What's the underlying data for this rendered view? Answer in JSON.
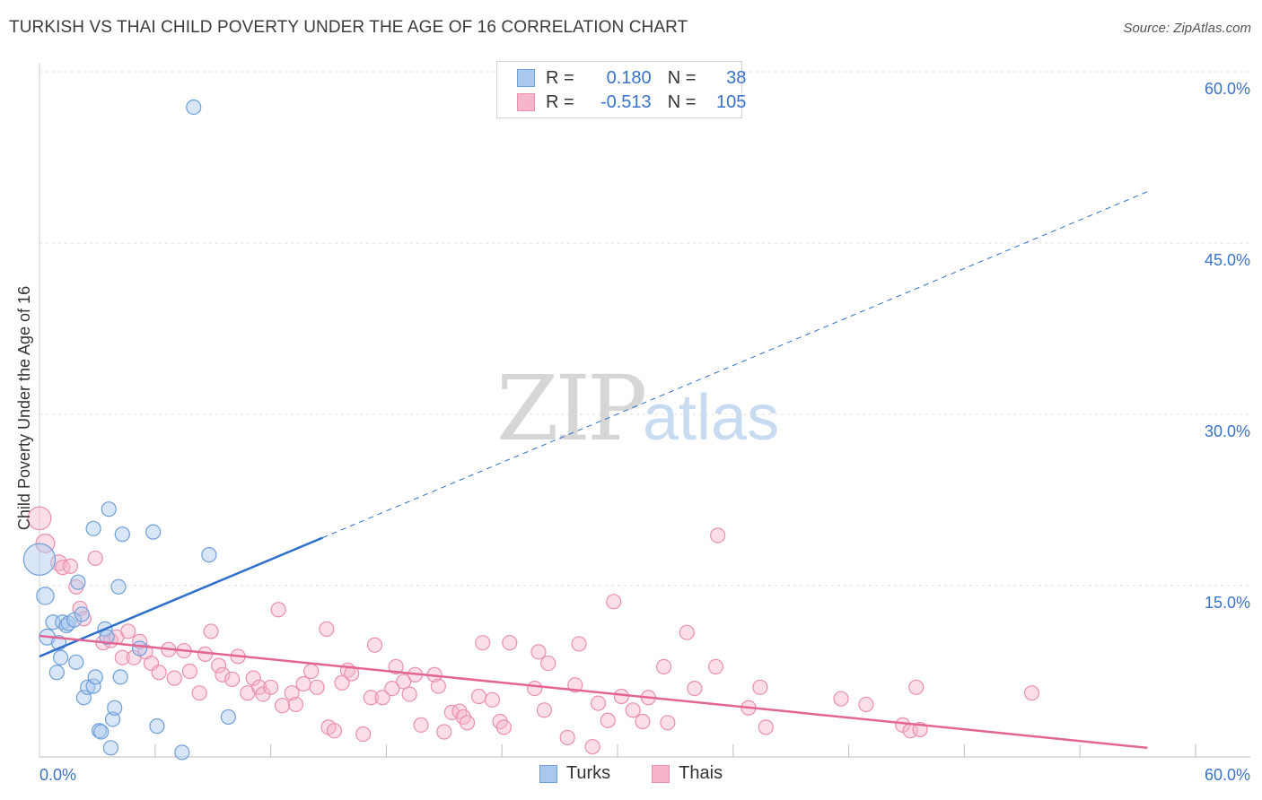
{
  "title": "TURKISH VS THAI CHILD POVERTY UNDER THE AGE OF 16 CORRELATION CHART",
  "source": "Source: ZipAtlas.com",
  "watermark": {
    "zip": "ZIP",
    "atlas": "atlas"
  },
  "legend": {
    "turks": {
      "r_label": "R =",
      "r_value": "0.180",
      "n_label": "N =",
      "n_value": "38"
    },
    "thais": {
      "r_label": "R =",
      "r_value": "-0.513",
      "n_label": "N =",
      "n_value": "105"
    }
  },
  "bottom_legend": {
    "turks": "Turks",
    "thais": "Thais"
  },
  "colors": {
    "turks_fill": "#a9c8ee",
    "turks_stroke": "#6f9fd8",
    "turks_line": "#2f6fcc",
    "thais_fill": "#f6b5cb",
    "thais_stroke": "#ea8fae",
    "thais_line": "#e26595",
    "axis_text": "#3a73c8"
  },
  "chart_data": {
    "type": "scatter",
    "title": "TURKISH VS THAI CHILD POVERTY UNDER THE AGE OF 16 CORRELATION CHART",
    "xlabel": "",
    "ylabel": "Child Poverty Under the Age of 16",
    "xlim": [
      0,
      60
    ],
    "ylim": [
      0,
      60
    ],
    "x_tick_labels": [
      "0.0%",
      "60.0%"
    ],
    "y_ticks": [
      15,
      30,
      45,
      60
    ],
    "y_tick_labels": [
      "15.0%",
      "30.0%",
      "45.0%",
      "60.0%"
    ],
    "series": [
      {
        "name": "Turks",
        "regression": {
          "x0": 0,
          "y0": 8.8,
          "x1": 14.7,
          "y1": 19.2,
          "dashed_to_x": 57.5,
          "dashed_to_y": 49.5
        },
        "points": [
          {
            "x": 0.0,
            "y": 17.3,
            "s": 2.2
          },
          {
            "x": 0.3,
            "y": 14.1,
            "s": 1.2
          },
          {
            "x": 0.4,
            "y": 10.5,
            "s": 1.1
          },
          {
            "x": 0.7,
            "y": 11.8,
            "s": 1
          },
          {
            "x": 0.9,
            "y": 7.4,
            "s": 1
          },
          {
            "x": 1.0,
            "y": 10.0,
            "s": 1
          },
          {
            "x": 1.1,
            "y": 8.7,
            "s": 1
          },
          {
            "x": 1.2,
            "y": 11.8,
            "s": 1
          },
          {
            "x": 1.4,
            "y": 11.5,
            "s": 1
          },
          {
            "x": 1.5,
            "y": 11.7,
            "s": 1
          },
          {
            "x": 1.8,
            "y": 12.0,
            "s": 1
          },
          {
            "x": 1.9,
            "y": 8.3,
            "s": 1
          },
          {
            "x": 2.0,
            "y": 15.3,
            "s": 1
          },
          {
            "x": 2.2,
            "y": 12.5,
            "s": 1
          },
          {
            "x": 2.3,
            "y": 5.2,
            "s": 1
          },
          {
            "x": 2.5,
            "y": 6.1,
            "s": 1
          },
          {
            "x": 2.8,
            "y": 6.2,
            "s": 1
          },
          {
            "x": 2.8,
            "y": 20.0,
            "s": 1
          },
          {
            "x": 2.9,
            "y": 7.0,
            "s": 1
          },
          {
            "x": 3.1,
            "y": 2.3,
            "s": 1
          },
          {
            "x": 3.2,
            "y": 2.2,
            "s": 1
          },
          {
            "x": 3.4,
            "y": 11.2,
            "s": 1
          },
          {
            "x": 3.5,
            "y": 10.5,
            "s": 1
          },
          {
            "x": 3.6,
            "y": 21.7,
            "s": 1
          },
          {
            "x": 3.7,
            "y": 0.8,
            "s": 1
          },
          {
            "x": 3.8,
            "y": 3.3,
            "s": 1
          },
          {
            "x": 3.9,
            "y": 4.3,
            "s": 1
          },
          {
            "x": 4.1,
            "y": 14.9,
            "s": 1
          },
          {
            "x": 4.2,
            "y": 7.0,
            "s": 1
          },
          {
            "x": 4.3,
            "y": 19.5,
            "s": 1
          },
          {
            "x": 5.2,
            "y": 9.5,
            "s": 1
          },
          {
            "x": 5.9,
            "y": 19.7,
            "s": 1
          },
          {
            "x": 6.1,
            "y": 2.7,
            "s": 1
          },
          {
            "x": 7.4,
            "y": 0.4,
            "s": 1
          },
          {
            "x": 8.0,
            "y": 56.9,
            "s": 1
          },
          {
            "x": 8.8,
            "y": 17.7,
            "s": 1
          },
          {
            "x": 9.8,
            "y": 3.5,
            "s": 1
          }
        ]
      },
      {
        "name": "Thais",
        "regression": {
          "x0": 0,
          "y0": 10.6,
          "x1": 57.5,
          "y1": 0.8
        },
        "points": [
          {
            "x": 0.0,
            "y": 20.9,
            "s": 1.6
          },
          {
            "x": 0.3,
            "y": 18.7,
            "s": 1.3
          },
          {
            "x": 1.0,
            "y": 17.0,
            "s": 1.1
          },
          {
            "x": 1.2,
            "y": 16.6,
            "s": 1
          },
          {
            "x": 1.6,
            "y": 16.7,
            "s": 1
          },
          {
            "x": 1.9,
            "y": 14.9,
            "s": 1
          },
          {
            "x": 2.1,
            "y": 13.0,
            "s": 1
          },
          {
            "x": 2.3,
            "y": 12.1,
            "s": 1
          },
          {
            "x": 2.9,
            "y": 17.4,
            "s": 1
          },
          {
            "x": 3.3,
            "y": 10.0,
            "s": 1
          },
          {
            "x": 3.7,
            "y": 10.2,
            "s": 1
          },
          {
            "x": 4.0,
            "y": 10.5,
            "s": 1
          },
          {
            "x": 4.3,
            "y": 8.7,
            "s": 1
          },
          {
            "x": 4.6,
            "y": 11.0,
            "s": 1
          },
          {
            "x": 4.9,
            "y": 8.7,
            "s": 1
          },
          {
            "x": 5.2,
            "y": 10.1,
            "s": 1
          },
          {
            "x": 5.5,
            "y": 9.2,
            "s": 1
          },
          {
            "x": 5.8,
            "y": 8.2,
            "s": 1
          },
          {
            "x": 6.2,
            "y": 7.4,
            "s": 1
          },
          {
            "x": 6.7,
            "y": 9.4,
            "s": 1
          },
          {
            "x": 7.0,
            "y": 6.9,
            "s": 1
          },
          {
            "x": 7.5,
            "y": 9.3,
            "s": 1
          },
          {
            "x": 7.8,
            "y": 7.5,
            "s": 1
          },
          {
            "x": 8.3,
            "y": 5.6,
            "s": 1
          },
          {
            "x": 8.6,
            "y": 9.0,
            "s": 1
          },
          {
            "x": 8.9,
            "y": 11.0,
            "s": 1
          },
          {
            "x": 9.3,
            "y": 8.0,
            "s": 1
          },
          {
            "x": 9.5,
            "y": 7.2,
            "s": 1
          },
          {
            "x": 10.0,
            "y": 6.8,
            "s": 1
          },
          {
            "x": 10.3,
            "y": 8.8,
            "s": 1
          },
          {
            "x": 10.8,
            "y": 5.6,
            "s": 1
          },
          {
            "x": 11.1,
            "y": 6.9,
            "s": 1
          },
          {
            "x": 11.4,
            "y": 6.1,
            "s": 1
          },
          {
            "x": 11.6,
            "y": 5.5,
            "s": 1
          },
          {
            "x": 12.0,
            "y": 6.1,
            "s": 1
          },
          {
            "x": 12.4,
            "y": 12.9,
            "s": 1
          },
          {
            "x": 12.6,
            "y": 4.5,
            "s": 1
          },
          {
            "x": 13.1,
            "y": 5.6,
            "s": 1
          },
          {
            "x": 13.3,
            "y": 4.6,
            "s": 1
          },
          {
            "x": 13.7,
            "y": 6.4,
            "s": 1
          },
          {
            "x": 14.1,
            "y": 7.5,
            "s": 1
          },
          {
            "x": 14.4,
            "y": 6.1,
            "s": 1
          },
          {
            "x": 14.9,
            "y": 11.2,
            "s": 1
          },
          {
            "x": 15.0,
            "y": 2.6,
            "s": 1
          },
          {
            "x": 15.3,
            "y": 2.3,
            "s": 1
          },
          {
            "x": 15.7,
            "y": 6.5,
            "s": 1
          },
          {
            "x": 16.0,
            "y": 7.6,
            "s": 1
          },
          {
            "x": 16.2,
            "y": 7.3,
            "s": 1
          },
          {
            "x": 16.8,
            "y": 2.0,
            "s": 1
          },
          {
            "x": 17.2,
            "y": 5.2,
            "s": 1
          },
          {
            "x": 17.4,
            "y": 9.8,
            "s": 1
          },
          {
            "x": 17.8,
            "y": 5.2,
            "s": 1
          },
          {
            "x": 18.3,
            "y": 6.0,
            "s": 1
          },
          {
            "x": 18.5,
            "y": 7.9,
            "s": 1
          },
          {
            "x": 18.9,
            "y": 6.6,
            "s": 1
          },
          {
            "x": 19.2,
            "y": 5.5,
            "s": 1
          },
          {
            "x": 19.5,
            "y": 7.2,
            "s": 1
          },
          {
            "x": 19.8,
            "y": 2.8,
            "s": 1
          },
          {
            "x": 20.5,
            "y": 7.2,
            "s": 1
          },
          {
            "x": 20.7,
            "y": 6.2,
            "s": 1
          },
          {
            "x": 21.0,
            "y": 2.2,
            "s": 1
          },
          {
            "x": 21.4,
            "y": 3.9,
            "s": 1
          },
          {
            "x": 21.8,
            "y": 4.0,
            "s": 1
          },
          {
            "x": 22.0,
            "y": 3.5,
            "s": 1
          },
          {
            "x": 22.2,
            "y": 3.0,
            "s": 1
          },
          {
            "x": 22.8,
            "y": 5.3,
            "s": 1
          },
          {
            "x": 23.0,
            "y": 10.0,
            "s": 1
          },
          {
            "x": 23.5,
            "y": 5.0,
            "s": 1
          },
          {
            "x": 23.9,
            "y": 3.1,
            "s": 1
          },
          {
            "x": 24.1,
            "y": 2.6,
            "s": 1
          },
          {
            "x": 24.4,
            "y": 10.0,
            "s": 1
          },
          {
            "x": 25.7,
            "y": 6.0,
            "s": 1
          },
          {
            "x": 25.9,
            "y": 9.2,
            "s": 1
          },
          {
            "x": 26.2,
            "y": 4.1,
            "s": 1
          },
          {
            "x": 26.4,
            "y": 8.2,
            "s": 1
          },
          {
            "x": 27.4,
            "y": 1.7,
            "s": 1
          },
          {
            "x": 27.8,
            "y": 6.3,
            "s": 1
          },
          {
            "x": 28.0,
            "y": 9.9,
            "s": 1
          },
          {
            "x": 28.7,
            "y": 0.9,
            "s": 1
          },
          {
            "x": 29.0,
            "y": 4.7,
            "s": 1
          },
          {
            "x": 29.5,
            "y": 3.2,
            "s": 1
          },
          {
            "x": 29.8,
            "y": 13.6,
            "s": 1
          },
          {
            "x": 30.2,
            "y": 5.3,
            "s": 1
          },
          {
            "x": 30.8,
            "y": 4.1,
            "s": 1
          },
          {
            "x": 31.3,
            "y": 3.1,
            "s": 1
          },
          {
            "x": 31.6,
            "y": 5.2,
            "s": 1
          },
          {
            "x": 32.4,
            "y": 7.9,
            "s": 1
          },
          {
            "x": 32.6,
            "y": 3.0,
            "s": 1
          },
          {
            "x": 33.6,
            "y": 10.9,
            "s": 1
          },
          {
            "x": 34.0,
            "y": 6.0,
            "s": 1
          },
          {
            "x": 35.1,
            "y": 7.9,
            "s": 1
          },
          {
            "x": 35.2,
            "y": 19.4,
            "s": 1
          },
          {
            "x": 36.8,
            "y": 4.3,
            "s": 1
          },
          {
            "x": 37.4,
            "y": 6.1,
            "s": 1
          },
          {
            "x": 37.7,
            "y": 2.6,
            "s": 1
          },
          {
            "x": 41.6,
            "y": 5.1,
            "s": 1
          },
          {
            "x": 42.9,
            "y": 4.6,
            "s": 1
          },
          {
            "x": 44.8,
            "y": 2.8,
            "s": 1
          },
          {
            "x": 45.2,
            "y": 2.3,
            "s": 1
          },
          {
            "x": 45.5,
            "y": 6.1,
            "s": 1
          },
          {
            "x": 45.7,
            "y": 2.4,
            "s": 1
          },
          {
            "x": 51.5,
            "y": 5.6,
            "s": 1
          }
        ]
      }
    ]
  }
}
